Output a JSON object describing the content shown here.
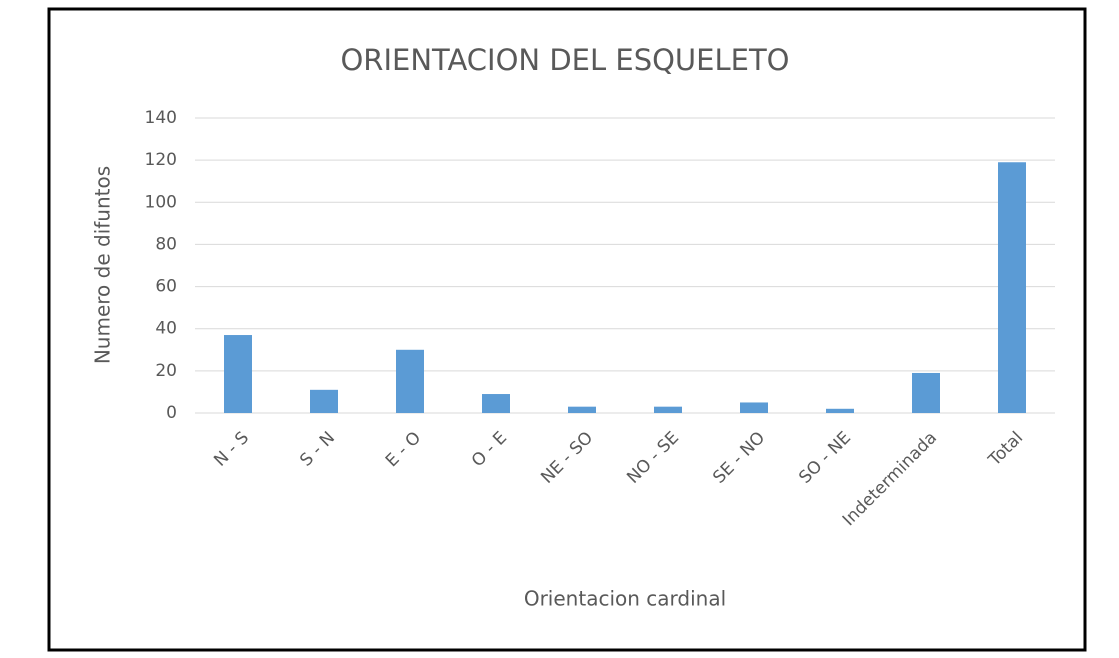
{
  "chart_data": {
    "type": "bar",
    "title": "ORIENTACION DEL ESQUELETO",
    "x_label": "Orientacion cardinal",
    "y_label": "Numero de difuntos",
    "categories": [
      "N - S",
      "S - N",
      "E - O",
      "O - E",
      "NE - SO",
      "NO - SE",
      "SE - NO",
      "SO - NE",
      "Indeterminada",
      "Total"
    ],
    "values": [
      37,
      11,
      30,
      9,
      3,
      3,
      5,
      2,
      19,
      119
    ],
    "color": "#5b9bd5",
    "ylim": [
      0,
      140
    ],
    "yticks": [
      0,
      20,
      40,
      60,
      80,
      100,
      120,
      140
    ],
    "grid": true
  }
}
